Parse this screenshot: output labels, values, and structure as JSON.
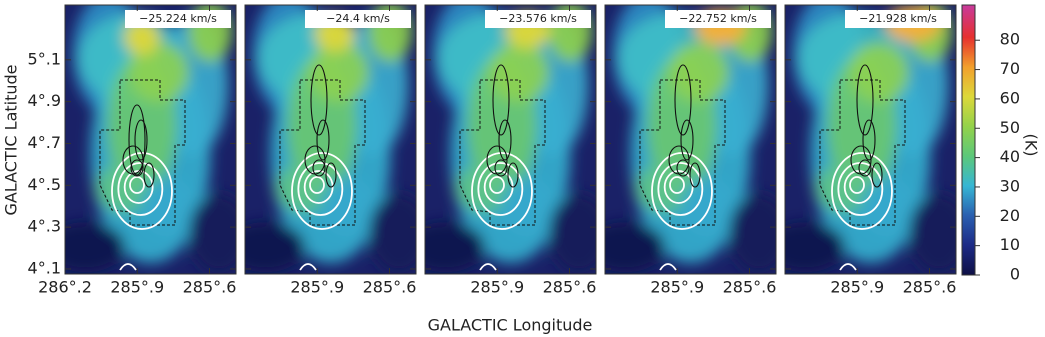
{
  "chart_data": {
    "type": "channel-maps",
    "xlabel": "GALACTIC Longitude",
    "ylabel": "GALACTIC Latitude",
    "xlim": [
      286.2,
      285.49
    ],
    "ylim": [
      4.076,
      5.362
    ],
    "yticks": [
      {
        "value": 4.1,
        "label": "4°.1"
      },
      {
        "value": 4.3,
        "label": "4°.3"
      },
      {
        "value": 4.5,
        "label": "4°.5"
      },
      {
        "value": 4.7,
        "label": "4°.7"
      },
      {
        "value": 4.9,
        "label": "4°.9"
      },
      {
        "value": 5.1,
        "label": "5°.1"
      }
    ],
    "panels": [
      {
        "title": "−25.224 km/s",
        "xticks": [
          {
            "value": 286.2,
            "label": "286°.2"
          },
          {
            "value": 285.9,
            "label": "285°.9"
          },
          {
            "value": 285.6,
            "label": "285°.6"
          }
        ]
      },
      {
        "title": "−24.4 km/s",
        "xticks": [
          {
            "value": 285.9,
            "label": "285°.9"
          },
          {
            "value": 285.6,
            "label": "285°.6"
          }
        ]
      },
      {
        "title": "−23.576 km/s",
        "xticks": [
          {
            "value": 285.9,
            "label": "285°.9"
          },
          {
            "value": 285.6,
            "label": "285°.6"
          }
        ]
      },
      {
        "title": "−22.752 km/s",
        "xticks": [
          {
            "value": 285.9,
            "label": "285°.9"
          },
          {
            "value": 285.6,
            "label": "285°.6"
          }
        ]
      },
      {
        "title": "−21.928 km/s",
        "xticks": [
          {
            "value": 285.9,
            "label": "285°.9"
          },
          {
            "value": 285.6,
            "label": "285°.6"
          }
        ]
      }
    ],
    "colorbar": {
      "label": "(K)",
      "lim": [
        0,
        92
      ],
      "ticks": [
        0,
        10,
        20,
        30,
        40,
        50,
        60,
        70,
        80
      ]
    }
  }
}
